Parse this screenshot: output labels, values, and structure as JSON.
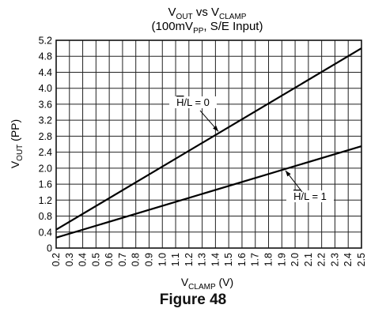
{
  "chart_data": {
    "type": "line",
    "title": {
      "line1": {
        "v1": "V",
        "s1": "OUT",
        "mid": " vs V",
        "s2": "CLAMP"
      },
      "line2": {
        "pre": "(100mV",
        "sub": "PP",
        "post": ", S/E Input)"
      }
    },
    "xlabel": {
      "main": "V",
      "sub": "CLAMP",
      "unit": " (V)"
    },
    "ylabel": {
      "main": "V",
      "sub": "OUT",
      "unit": " (PP)"
    },
    "xlim": [
      0.2,
      2.5
    ],
    "ylim": [
      0,
      5.2
    ],
    "xticks": [
      "0.2",
      "0.3",
      "0.4",
      "0.5",
      "0.6",
      "0.7",
      "0.8",
      "0.9",
      "1.0",
      "1.1",
      "1.2",
      "1.3",
      "1.4",
      "1.5",
      "1.6",
      "1.7",
      "1.8",
      "1.9",
      "2.0",
      "2.1",
      "2.2",
      "2.3",
      "2.4",
      "2.5"
    ],
    "yticks": [
      "0",
      "0.4",
      "0.8",
      "1.2",
      "1.6",
      "2.0",
      "2.4",
      "2.8",
      "3.2",
      "3.6",
      "4.0",
      "4.4",
      "4.8",
      "5.2"
    ],
    "grid": true,
    "series": [
      {
        "name": "H/L = 0",
        "label_overline": "H",
        "label_rest": "/L = 0",
        "x": [
          0.2,
          2.5
        ],
        "y": [
          0.46,
          5.0
        ]
      },
      {
        "name": "H/L = 1",
        "label_overline": "H",
        "label_rest": "/L = 1",
        "x": [
          0.2,
          2.5
        ],
        "y": [
          0.26,
          2.55
        ]
      }
    ]
  },
  "figure_caption": "Figure 48"
}
